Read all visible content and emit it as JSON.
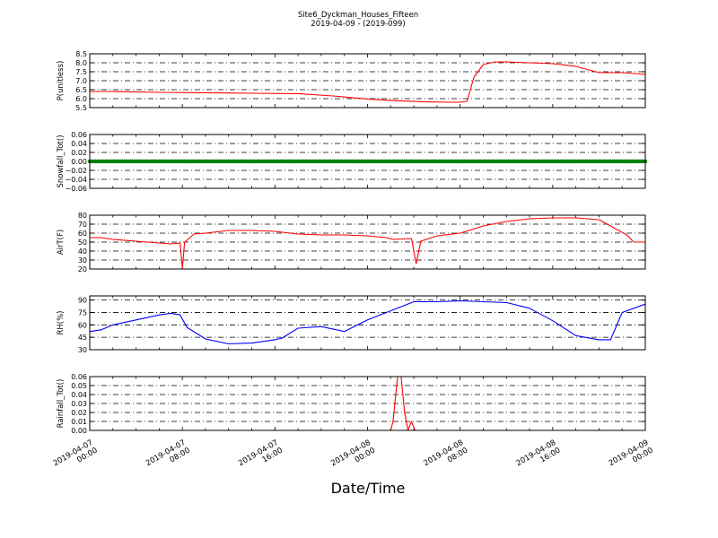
{
  "figure": {
    "title": "Site6_Dyckman_Houses_Fifteen",
    "subtitle": "2019-04-09 - (2019-099)",
    "xlabel": "Date/Time"
  },
  "chart_data": [
    {
      "type": "line",
      "ylabel": "P(unitless)",
      "ylim": [
        5.5,
        8.5
      ],
      "yticks": [
        "8.5",
        "8.0",
        "7.5",
        "7.0",
        "6.5",
        "6.0",
        "5.5"
      ],
      "grid": true,
      "color": "#ff0000",
      "series": [
        {
          "x": [
            0,
            1,
            3,
            5,
            7,
            9,
            10.5,
            12,
            13.3,
            14.5,
            15.5,
            16,
            16.3,
            16.6,
            17,
            17.5,
            18,
            19,
            20,
            21,
            22,
            23,
            24
          ],
          "values": [
            6.4,
            6.4,
            6.35,
            6.33,
            6.3,
            6.28,
            6.15,
            5.98,
            5.88,
            5.82,
            5.8,
            5.8,
            5.85,
            7.2,
            7.9,
            8.05,
            8.05,
            8.0,
            7.95,
            7.8,
            7.45,
            7.45,
            7.35
          ]
        }
      ]
    },
    {
      "type": "scatter",
      "ylabel": "Snowfall_Tot()",
      "ylim": [
        -0.06,
        0.06
      ],
      "yticks": [
        "0.06",
        "0.04",
        "0.02",
        "0.00",
        "−0.02",
        "−0.04",
        "−0.06"
      ],
      "grid": true,
      "color": "#008000",
      "series": [
        {
          "x_start": 0,
          "x_end": 24,
          "value": 0.0
        }
      ]
    },
    {
      "type": "line",
      "ylabel": "AirT(F)",
      "ylim": [
        20,
        80
      ],
      "yticks": [
        "80",
        "70",
        "60",
        "50",
        "40",
        "30",
        "20"
      ],
      "grid": true,
      "color": "#ff0000",
      "series": [
        {
          "x": [
            0,
            0.5,
            1,
            2,
            3,
            3.5,
            3.9,
            4.0,
            4.1,
            4.5,
            5,
            6,
            7,
            8,
            9,
            10,
            11,
            12,
            12.8,
            13.1,
            13.9,
            14.1,
            14.3,
            15,
            16,
            17,
            18,
            19,
            20,
            21,
            22,
            23.2,
            23.5,
            24
          ],
          "values": [
            55,
            55,
            53,
            51,
            49,
            48,
            49,
            21,
            50,
            59,
            60,
            63,
            63,
            62,
            59,
            58,
            58,
            57,
            55,
            53,
            54,
            26,
            51,
            57,
            60,
            68,
            73,
            76,
            77,
            77,
            75,
            58,
            50,
            50
          ]
        }
      ]
    },
    {
      "type": "line",
      "ylabel": "RH(%)",
      "ylim": [
        30,
        95
      ],
      "yticks": [
        "90",
        "75",
        "60",
        "45",
        "30"
      ],
      "grid": true,
      "color": "#0000ff",
      "series": [
        {
          "x": [
            0,
            0.5,
            1,
            2,
            3,
            3.5,
            3.9,
            4.2,
            5,
            6,
            7,
            8,
            8.3,
            9,
            10,
            11,
            12,
            13,
            14,
            15,
            16,
            17,
            18,
            19,
            20,
            21,
            22,
            22.5,
            23,
            24
          ],
          "values": [
            52,
            54,
            60,
            66,
            72,
            74,
            72,
            57,
            43,
            37,
            38,
            42,
            44,
            56,
            58,
            52,
            66,
            77,
            88,
            88,
            89,
            88,
            87,
            80,
            65,
            47,
            42,
            42,
            75,
            85
          ]
        }
      ]
    },
    {
      "type": "line",
      "ylabel": "Rainfall_Tot()",
      "ylim": [
        0,
        0.06
      ],
      "yticks": [
        "0.06",
        "0.05",
        "0.04",
        "0.03",
        "0.02",
        "0.01",
        "0.00"
      ],
      "grid": true,
      "color": "#ff0000",
      "series": [
        {
          "x": [
            0,
            13,
            13.1,
            13.3,
            13.45,
            13.6,
            13.75,
            13.9,
            14.05,
            24
          ],
          "values": [
            0,
            0,
            0.01,
            0.06,
            0.06,
            0.02,
            0.0,
            0.01,
            0,
            0
          ]
        }
      ]
    }
  ],
  "x_ticks": [
    {
      "x": 0,
      "line1": "2019-04-07",
      "line2": "00:00"
    },
    {
      "x": 4,
      "line1": "2019-04-07",
      "line2": "08:00"
    },
    {
      "x": 8,
      "line1": "2019-04-07",
      "line2": "16:00"
    },
    {
      "x": 12,
      "line1": "2019-04-08",
      "line2": "00:00"
    },
    {
      "x": 16,
      "line1": "2019-04-08",
      "line2": "08:00"
    },
    {
      "x": 20,
      "line1": "2019-04-08",
      "line2": "16:00"
    },
    {
      "x": 24,
      "line1": "2019-04-09",
      "line2": "00:00"
    }
  ]
}
